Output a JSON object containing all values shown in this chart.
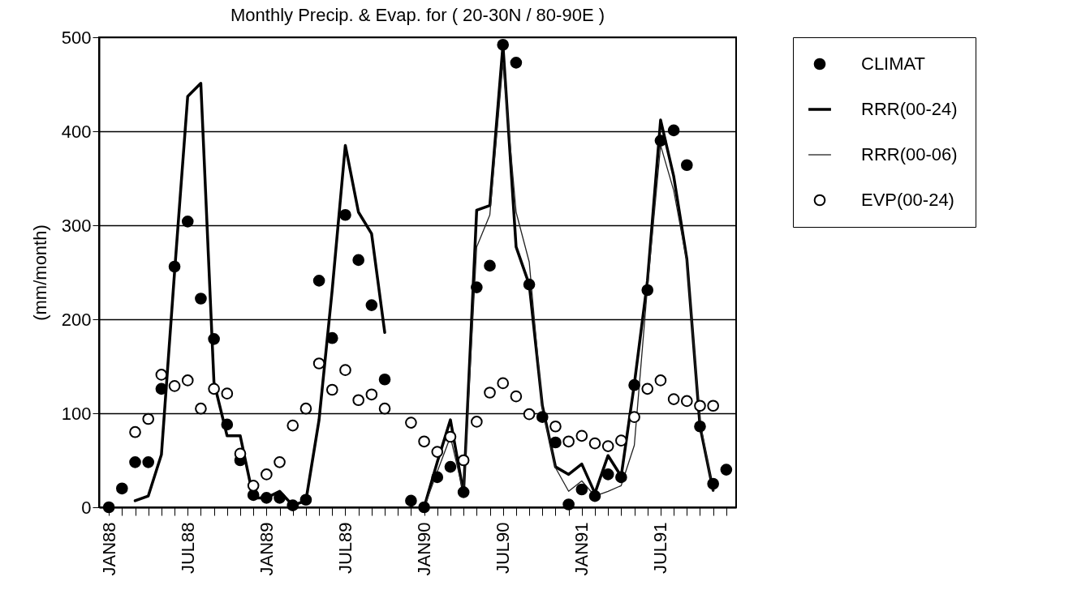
{
  "chart_data": {
    "type": "scatter",
    "title": "Monthly Precip. & Evap. for  ( 20-30N / 80-90E )",
    "ylabel": "(mm/month)",
    "categories": [
      "JAN88",
      null,
      null,
      null,
      null,
      null,
      "JUL88",
      null,
      null,
      null,
      null,
      null,
      "JAN89",
      null,
      null,
      null,
      null,
      null,
      "JUL89",
      null,
      null,
      null,
      null,
      null,
      "JAN90",
      null,
      null,
      null,
      null,
      null,
      "JUL90",
      null,
      null,
      null,
      null,
      null,
      "JAN91",
      null,
      null,
      null,
      null,
      null,
      "JUL91",
      null,
      null,
      null,
      null,
      null
    ],
    "ylim": [
      0,
      500
    ],
    "yticks": [
      0,
      100,
      200,
      300,
      400,
      500
    ],
    "grid": "y",
    "legend": "top right",
    "series": [
      {
        "name": "CLIMAT",
        "color": "#000000",
        "marker": "circle",
        "values": [
          0,
          20,
          48,
          48,
          126,
          256,
          304,
          222,
          179,
          88,
          50,
          13,
          10,
          10,
          2,
          8,
          241,
          180,
          311,
          263,
          215,
          136,
          null,
          7,
          0,
          32,
          43,
          16,
          234,
          257,
          492,
          473,
          237,
          96,
          69,
          3,
          19,
          12,
          35,
          32,
          130,
          231,
          390,
          401,
          364,
          86,
          25,
          40
        ]
      },
      {
        "name": "RRR(00-24)",
        "type": "line",
        "color": "#000000",
        "values": [
          null,
          null,
          7,
          12,
          56,
          250,
          437,
          451,
          133,
          76,
          76,
          10,
          10,
          17,
          2,
          7,
          93,
          231,
          385,
          314,
          291,
          186,
          null,
          null,
          0,
          48,
          93,
          15,
          316,
          321,
          492,
          277,
          237,
          108,
          43,
          35,
          46,
          15,
          55,
          33,
          131,
          241,
          412,
          352,
          264,
          86,
          18,
          null
        ]
      },
      {
        "name": "RRR(00-06)",
        "type": "line",
        "color": "#222222",
        "values": [
          null,
          null,
          null,
          null,
          null,
          null,
          null,
          null,
          null,
          null,
          null,
          null,
          null,
          null,
          null,
          null,
          null,
          null,
          null,
          null,
          null,
          null,
          null,
          null,
          0,
          38,
          75,
          15,
          277,
          311,
          473,
          314,
          261,
          105,
          42,
          17,
          28,
          12,
          17,
          23,
          66,
          234,
          385,
          337,
          261,
          91,
          17,
          null
        ]
      },
      {
        "name": "EVP(00-24)",
        "color": "#000000",
        "marker": "circle",
        "values": [
          null,
          null,
          80,
          94,
          141,
          129,
          135,
          105,
          126,
          121,
          57,
          23,
          35,
          48,
          87,
          105,
          153,
          125,
          146,
          114,
          120,
          105,
          null,
          90,
          70,
          59,
          75,
          50,
          91,
          122,
          132,
          118,
          99,
          null,
          86,
          70,
          76,
          68,
          65,
          71,
          96,
          126,
          135,
          115,
          113,
          108,
          108,
          null
        ]
      }
    ]
  }
}
